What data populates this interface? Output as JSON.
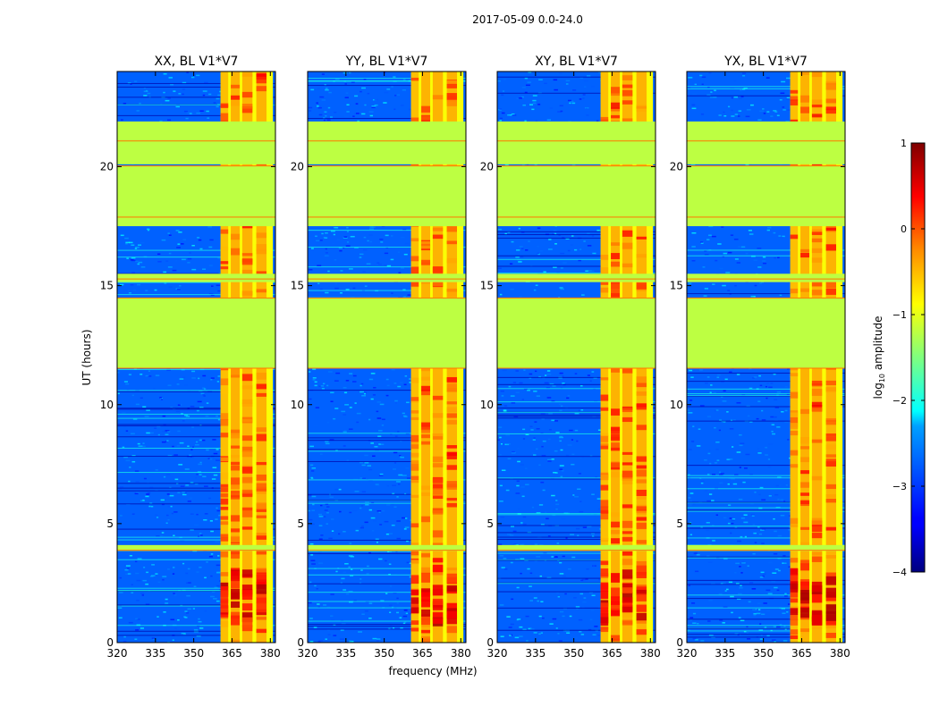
{
  "chart_data": {
    "type": "heatmap",
    "suptitle": "2017-05-09 0.0-24.0",
    "xlabel": "frequency (MHz)",
    "ylabel": "UT (hours)",
    "x_range": [
      320,
      382
    ],
    "y_range": [
      0,
      24
    ],
    "x_ticks": [
      320,
      335,
      350,
      365,
      380
    ],
    "y_ticks": [
      0,
      5,
      10,
      15,
      20
    ],
    "colormap": "jet",
    "colorbar": {
      "label": "log10 amplitude",
      "label_base": "log",
      "label_sub": "10",
      "label_rest": " amplitude",
      "range": [
        -4,
        1
      ],
      "ticks": [
        {
          "value": 1,
          "label": "1"
        },
        {
          "value": 0,
          "label": "0"
        },
        {
          "value": -1,
          "label": "−1"
        },
        {
          "value": -2,
          "label": "−2"
        },
        {
          "value": -3,
          "label": "−3"
        },
        {
          "value": -4,
          "label": "−4"
        }
      ]
    },
    "panels": [
      {
        "title": "XX, BL V1*V7"
      },
      {
        "title": "YY, BL V1*V7"
      },
      {
        "title": "XY, BL V1*V7"
      },
      {
        "title": "YX, BL V1*V7"
      }
    ],
    "background_level": -2.9,
    "rfi_band_mhz": [
      360.5,
      381
    ],
    "rfi_level": -0.9,
    "rfi_channels": [
      {
        "start": 360.5,
        "end": 363.5,
        "level": -0.3
      },
      {
        "start": 364.5,
        "end": 368.0,
        "level": -0.2
      },
      {
        "start": 369.0,
        "end": 373.0,
        "level": -0.2
      },
      {
        "start": 374.5,
        "end": 378.5,
        "level": -0.2
      }
    ],
    "flagged_blocks_ut": [
      {
        "start": 11.55,
        "end": 14.5,
        "value": -1.2
      },
      {
        "start": 17.5,
        "end": 20.05,
        "value": -1.2
      },
      {
        "start": 20.1,
        "end": 21.9,
        "value": -1.2
      },
      {
        "start": 15.15,
        "end": 15.5,
        "value": -1.2
      },
      {
        "start": 3.85,
        "end": 4.1,
        "value": -1.2
      }
    ],
    "bright_event_ut": [
      1.0,
      3.3
    ],
    "bright_event_level": 0.8
  }
}
